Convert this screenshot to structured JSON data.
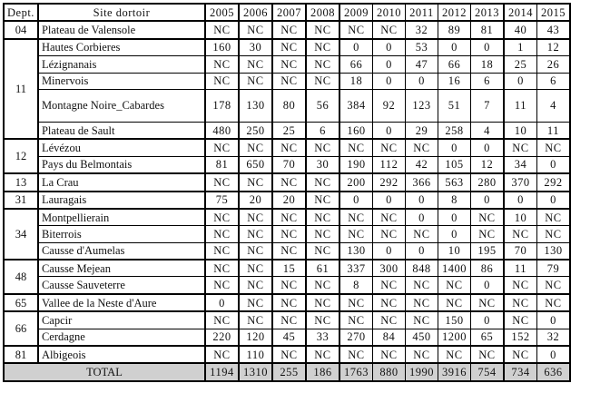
{
  "headers": {
    "dept": "Dept.",
    "site": "Site dortoir",
    "years": [
      "2005",
      "2006",
      "2007",
      "2008",
      "2009",
      "2010",
      "2011",
      "2012",
      "2013",
      "2014",
      "2015"
    ]
  },
  "groups": [
    {
      "dept": "04",
      "sites": [
        {
          "name": "Plateau de Valensole",
          "values": [
            "NC",
            "NC",
            "NC",
            "NC",
            "NC",
            "NC",
            "32",
            "89",
            "81",
            "40",
            "43"
          ]
        }
      ]
    },
    {
      "dept": "11",
      "sites": [
        {
          "name": "Hautes Corbieres",
          "values": [
            "160",
            "30",
            "NC",
            "NC",
            "0",
            "0",
            "53",
            "0",
            "0",
            "1",
            "12"
          ]
        },
        {
          "name": "Lézignanais",
          "values": [
            "NC",
            "NC",
            "NC",
            "NC",
            "66",
            "0",
            "47",
            "66",
            "18",
            "25",
            "26"
          ]
        },
        {
          "name": "Minervois",
          "values": [
            "NC",
            "NC",
            "NC",
            "NC",
            "18",
            "0",
            "0",
            "16",
            "6",
            "0",
            "6"
          ]
        },
        {
          "name": "Montagne Noire_Cabardes",
          "values": [
            "178",
            "130",
            "80",
            "56",
            "384",
            "92",
            "123",
            "51",
            "7",
            "11",
            "4"
          ]
        },
        {
          "name": "Plateau de Sault",
          "values": [
            "480",
            "250",
            "25",
            "6",
            "160",
            "0",
            "29",
            "258",
            "4",
            "10",
            "11"
          ]
        }
      ]
    },
    {
      "dept": "12",
      "sites": [
        {
          "name": "Lévézou",
          "values": [
            "NC",
            "NC",
            "NC",
            "NC",
            "NC",
            "NC",
            "NC",
            "0",
            "0",
            "NC",
            "NC"
          ]
        },
        {
          "name": "Pays du Belmontais",
          "values": [
            "81",
            "650",
            "70",
            "30",
            "190",
            "112",
            "42",
            "105",
            "12",
            "34",
            "0"
          ]
        }
      ]
    },
    {
      "dept": "13",
      "sites": [
        {
          "name": "La Crau",
          "values": [
            "NC",
            "NC",
            "NC",
            "NC",
            "200",
            "292",
            "366",
            "563",
            "280",
            "370",
            "292"
          ]
        }
      ]
    },
    {
      "dept": "31",
      "sites": [
        {
          "name": "Lauragais",
          "values": [
            "75",
            "20",
            "20",
            "NC",
            "0",
            "0",
            "0",
            "8",
            "0",
            "0",
            "0"
          ]
        }
      ]
    },
    {
      "dept": "34",
      "sites": [
        {
          "name": "Montpellierain",
          "values": [
            "NC",
            "NC",
            "NC",
            "NC",
            "NC",
            "NC",
            "0",
            "0",
            "NC",
            "10",
            "NC"
          ]
        },
        {
          "name": "Biterrois",
          "values": [
            "NC",
            "NC",
            "NC",
            "NC",
            "NC",
            "NC",
            "NC",
            "0",
            "NC",
            "NC",
            "NC"
          ]
        },
        {
          "name": "Causse d'Aumelas",
          "values": [
            "NC",
            "NC",
            "NC",
            "NC",
            "130",
            "0",
            "0",
            "10",
            "195",
            "70",
            "130"
          ]
        }
      ]
    },
    {
      "dept": "48",
      "sites": [
        {
          "name": "Causse Mejean",
          "values": [
            "NC",
            "NC",
            "15",
            "61",
            "337",
            "300",
            "848",
            "1400",
            "86",
            "11",
            "79"
          ]
        },
        {
          "name": "Causse Sauveterre",
          "values": [
            "NC",
            "NC",
            "NC",
            "NC",
            "8",
            "NC",
            "NC",
            "NC",
            "0",
            "NC",
            "NC"
          ]
        }
      ]
    },
    {
      "dept": "65",
      "sites": [
        {
          "name": "Vallee de la Neste d'Aure",
          "values": [
            "0",
            "NC",
            "NC",
            "NC",
            "NC",
            "NC",
            "NC",
            "NC",
            "NC",
            "NC",
            "NC"
          ]
        }
      ]
    },
    {
      "dept": "66",
      "sites": [
        {
          "name": "Capcir",
          "values": [
            "NC",
            "NC",
            "NC",
            "NC",
            "NC",
            "NC",
            "NC",
            "150",
            "0",
            "NC",
            "0"
          ]
        },
        {
          "name": "Cerdagne",
          "values": [
            "220",
            "120",
            "45",
            "33",
            "270",
            "84",
            "450",
            "1200",
            "65",
            "152",
            "32"
          ]
        }
      ]
    },
    {
      "dept": "81",
      "sites": [
        {
          "name": "Albigeois",
          "values": [
            "NC",
            "110",
            "NC",
            "NC",
            "NC",
            "NC",
            "NC",
            "NC",
            "NC",
            "NC",
            "0"
          ]
        }
      ]
    }
  ],
  "total": {
    "label": "TOTAL",
    "values": [
      "1194",
      "1310",
      "255",
      "186",
      "1763",
      "880",
      "1990",
      "3916",
      "754",
      "734",
      "636"
    ]
  },
  "colors": {
    "total_row_bg": "#d0d0d0",
    "border": "#000000"
  }
}
